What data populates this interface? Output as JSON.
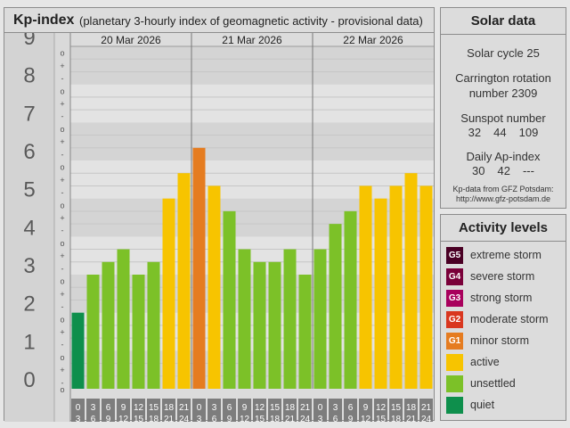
{
  "kp_panel": {
    "title": "Kp-index",
    "subtitle": "(planetary 3-hourly index of geomagnetic activity - provisional data)"
  },
  "chart_data": {
    "type": "bar",
    "title": "Kp-index",
    "subtitle": "(planetary 3-hourly index of geomagnetic activity - provisional data)",
    "ylim": [
      0,
      9
    ],
    "y_ticks": [
      "0",
      "1",
      "2",
      "3",
      "4",
      "5",
      "6",
      "7",
      "8",
      "9"
    ],
    "minor_tick_marks": [
      "o",
      "+",
      "-"
    ],
    "days": [
      "20 Mar 2026",
      "21 Mar 2026",
      "22 Mar 2026"
    ],
    "interval_starts": [
      "0",
      "3",
      "6",
      "9",
      "12",
      "15",
      "18",
      "21"
    ],
    "interval_ends": [
      "3",
      "6",
      "9",
      "12",
      "15",
      "18",
      "21",
      "24"
    ],
    "values": [
      1.0,
      2.0,
      2.333,
      2.667,
      2.0,
      2.333,
      4.0,
      4.667,
      5.333,
      4.333,
      3.667,
      2.667,
      2.333,
      2.333,
      2.667,
      2.0,
      2.667,
      3.333,
      3.667,
      4.333,
      4.0,
      4.333,
      4.667,
      4.333
    ],
    "missing_marker": "x",
    "grid": true,
    "legend": "right",
    "colors": {
      "quiet": "#0e8f4c",
      "unsettled": "#7cc128",
      "active": "#f7c400",
      "G1": "#e57c20",
      "G2": "#d9371f",
      "G3": "#a8005c",
      "G4": "#7a0039",
      "G5": "#4a0024"
    }
  },
  "solar_data": {
    "title": "Solar data",
    "cycle": "Solar cycle 25",
    "carrington_line1": "Carrington rotation",
    "carrington_line2": "number 2309",
    "sunspot_label": "Sunspot number",
    "sunspot_values": [
      "32",
      "44",
      "109"
    ],
    "ap_label": "Daily Ap-index",
    "ap_values": [
      "30",
      "42",
      "---"
    ],
    "credit_line1": "Kp-data from GFZ Potsdam:",
    "credit_line2": "http://www.gfz-potsdam.de"
  },
  "activity_levels": {
    "title": "Activity levels",
    "items": [
      {
        "code": "G5",
        "label": "extreme storm",
        "color": "#4a0024"
      },
      {
        "code": "G4",
        "label": "severe storm",
        "color": "#7a0039"
      },
      {
        "code": "G3",
        "label": "strong storm",
        "color": "#a8005c"
      },
      {
        "code": "G2",
        "label": "moderate storm",
        "color": "#d9371f"
      },
      {
        "code": "G1",
        "label": "minor storm",
        "color": "#e57c20"
      },
      {
        "code": "",
        "label": "active",
        "color": "#f7c400"
      },
      {
        "code": "",
        "label": "unsettled",
        "color": "#7cc128"
      },
      {
        "code": "",
        "label": "quiet",
        "color": "#0e8f4c"
      }
    ]
  }
}
